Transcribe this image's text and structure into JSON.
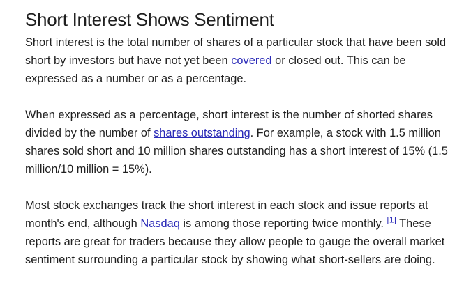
{
  "article": {
    "heading": "Short Interest Shows Sentiment",
    "p1": {
      "before": "Short interest is the total number of shares of a particular stock that have been sold short by investors but have not yet been ",
      "link": "covered",
      "after": " or closed out. This can be expressed as a number or as a percentage."
    },
    "p2": {
      "before": "When expressed as a percentage, short interest is the number of shorted shares divided by the number of ",
      "link": "shares outstanding",
      "after": ". For example, a stock with 1.5 million shares sold short and 10 million shares outstanding has a short interest of 15% (1.5 million/10 million = 15%)."
    },
    "p3": {
      "before": "Most stock exchanges track the short interest in each stock and issue reports at month's end, although ",
      "link": "Nasdaq",
      "middle": " is among those reporting twice monthly. ",
      "footnote": "[1]",
      "after": " These reports are great for traders because they allow people to gauge the overall market sentiment surrounding a particular stock by showing what short-sellers are doing."
    }
  }
}
